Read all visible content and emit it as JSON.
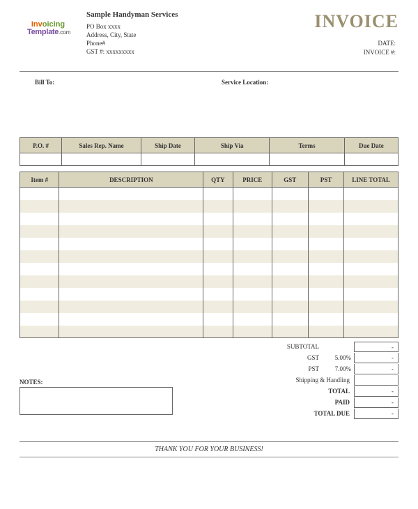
{
  "colors": {
    "header_bg": "#d9d4bc",
    "stripe_odd": "#f0ede0",
    "stripe_even": "#ffffff",
    "border": "#666666",
    "title_color": "#9a9070"
  },
  "logo": {
    "invoicing_a": "Inv",
    "invoicing_b": "oicing",
    "template": "Template",
    "dotcom": ".com"
  },
  "company": {
    "name": "Sample Handyman Services",
    "line1": "PO Box xxxx",
    "line2": "Address, City, State",
    "line3": "Phone#",
    "line4": "GST #: xxxxxxxxx"
  },
  "title": "INVOICE",
  "meta": {
    "date_label": "DATE:",
    "invoice_no_label": "INVOICE #:"
  },
  "addr": {
    "bill_to": "Bill To:",
    "service_location": "Service Location:"
  },
  "order_headers": {
    "po": "P.O. #",
    "sales_rep": "Sales Rep. Name",
    "ship_date": "Ship Date",
    "ship_via": "Ship Via",
    "terms": "Terms",
    "due_date": "Due Date"
  },
  "item_headers": {
    "item": "Item #",
    "desc": "DESCRIPTION",
    "qty": "QTY",
    "price": "PRICE",
    "gst": "GST",
    "pst": "PST",
    "line_total": "LINE TOTAL"
  },
  "item_rows": 12,
  "totals": {
    "subtotal_label": "SUBTOTAL",
    "gst_label": "GST",
    "gst_pct": "5.00%",
    "pst_label": "PST",
    "pst_pct": "7.00%",
    "shipping_label": "Shipping & Handling",
    "total_label": "TOTAL",
    "paid_label": "PAID",
    "total_due_label": "TOTAL DUE",
    "dash": "-"
  },
  "notes_label": "NOTES:",
  "footer": "THANK YOU FOR YOUR BUSINESS!"
}
